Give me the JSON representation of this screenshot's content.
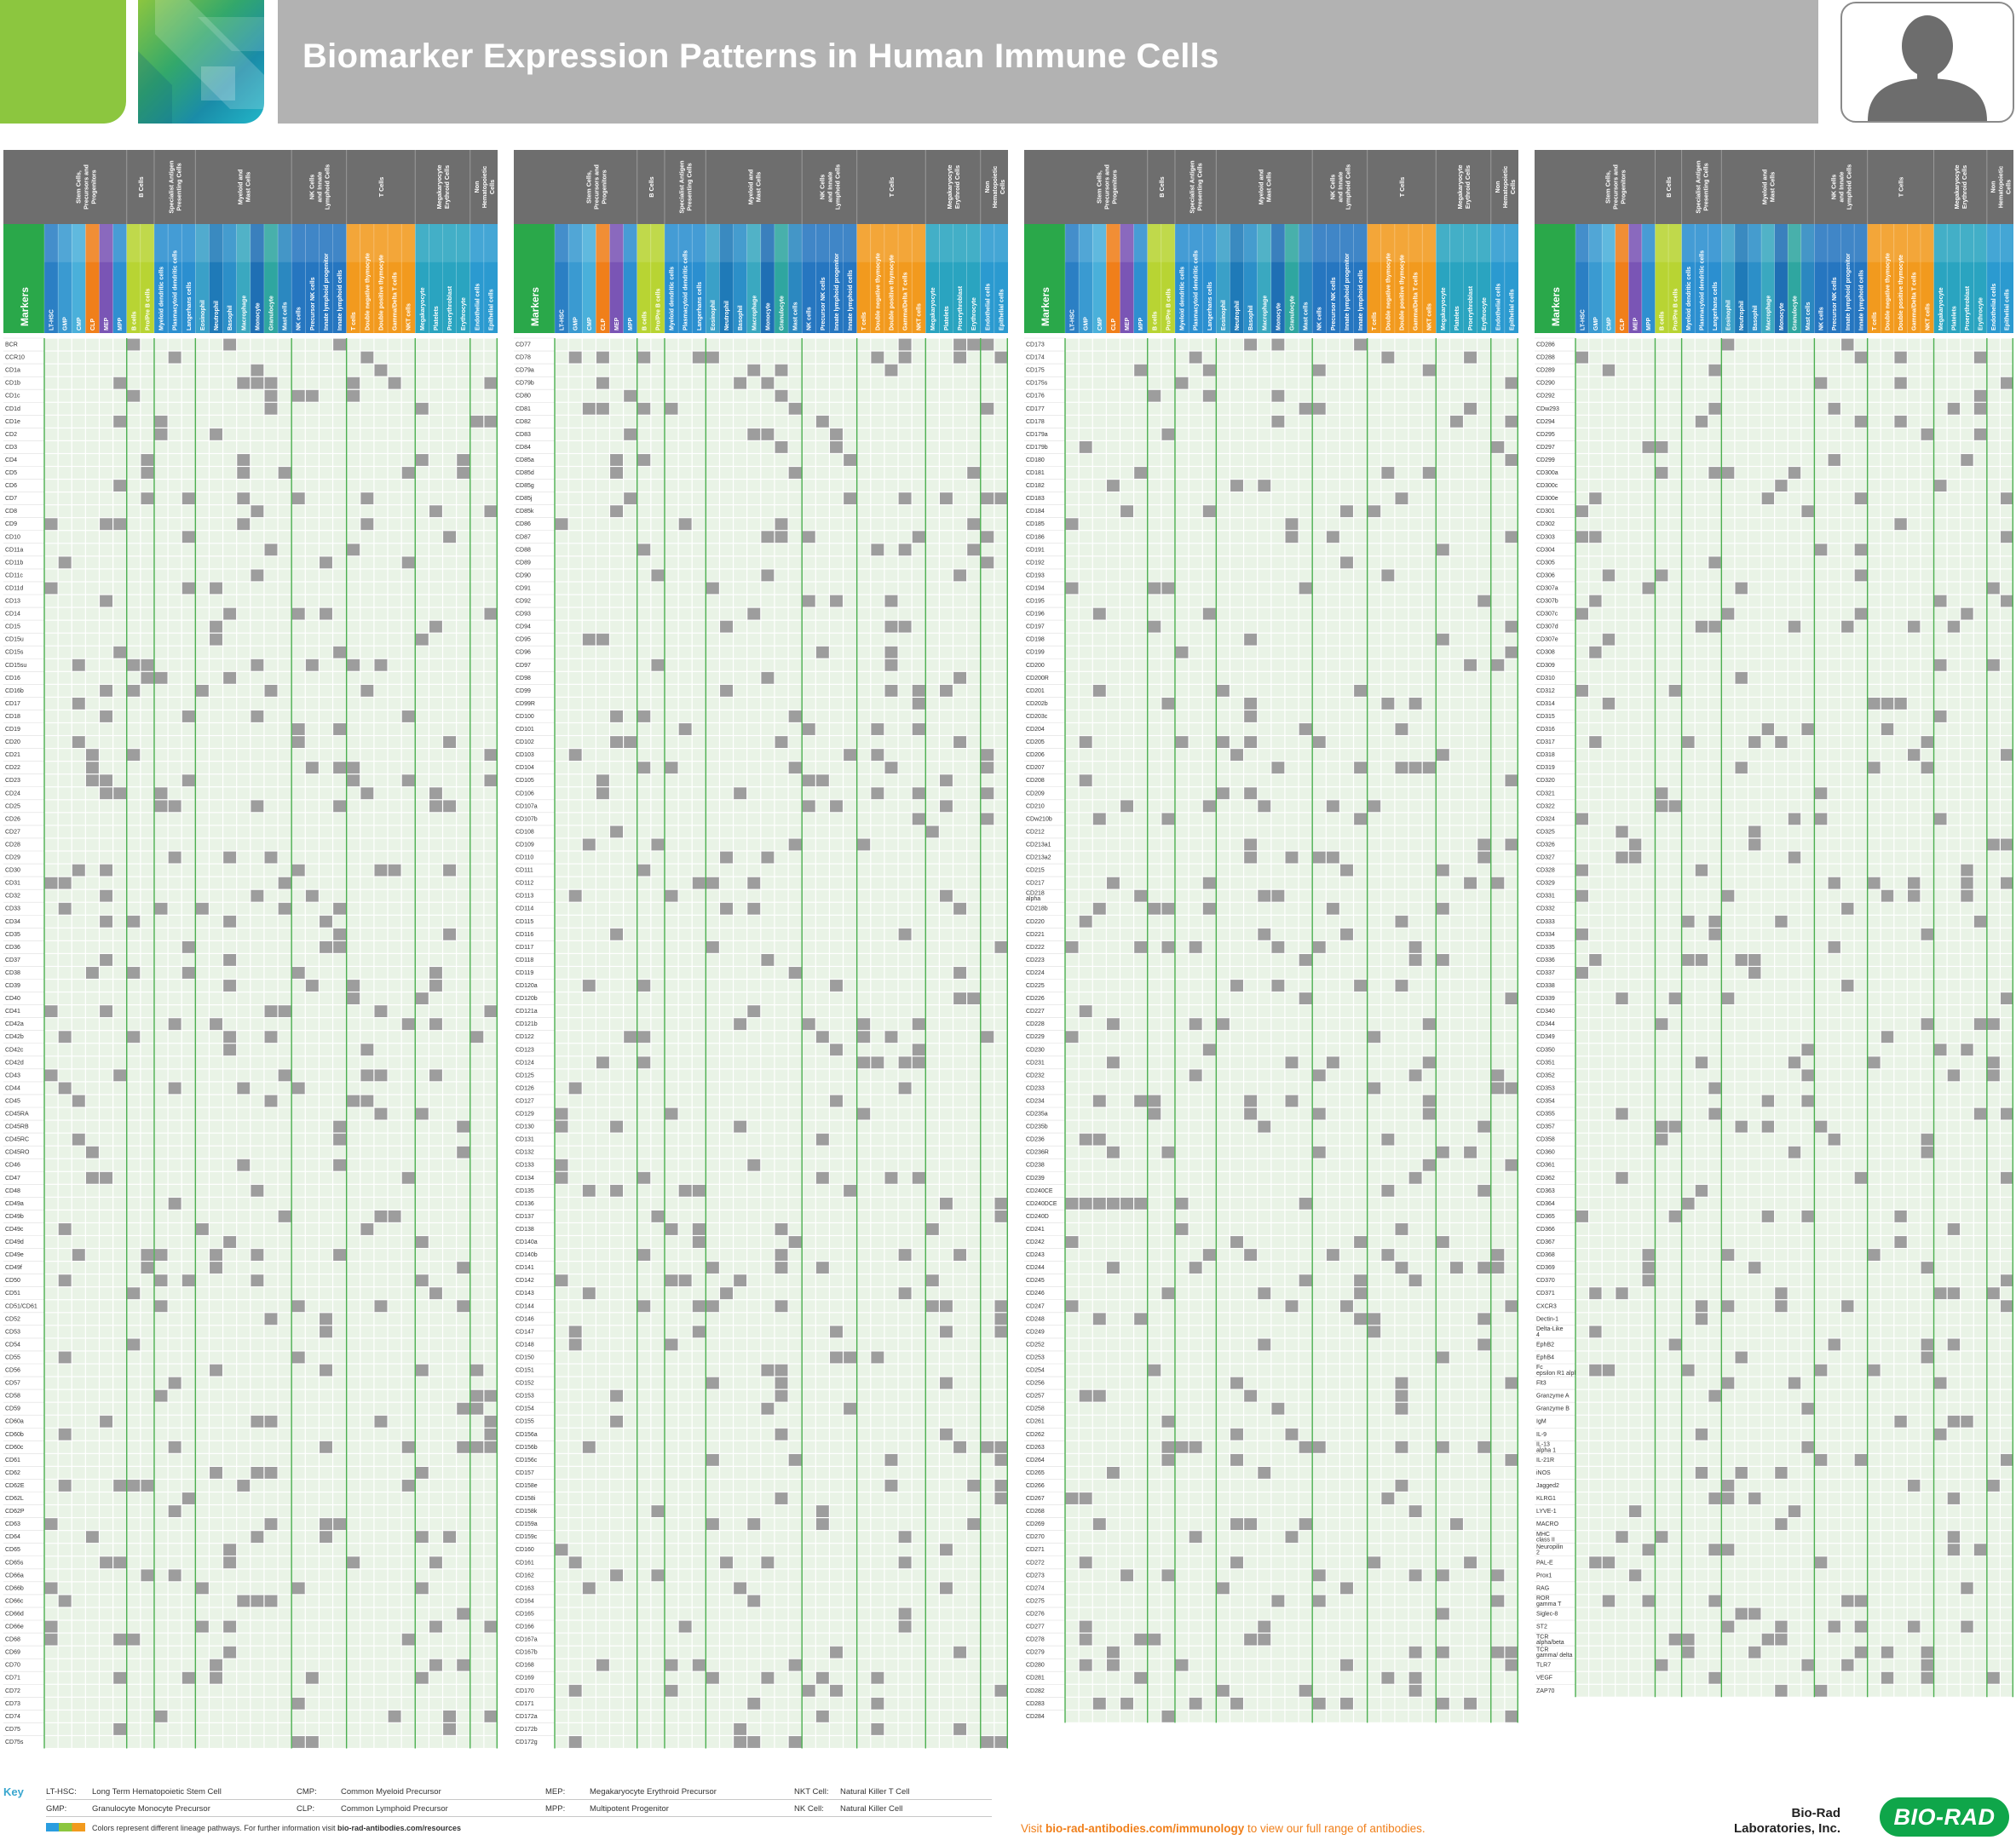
{
  "header": {
    "title": "Biomarker Expression Patterns in Human Immune Cells"
  },
  "colors": {
    "header_gray": "#6e6e6e",
    "grid_green": "#4caf50",
    "cell_light": "#e9f3e6",
    "cell_positive": "#9d9d9d",
    "brand_green": "#0fa64a",
    "accent_orange": "#f07f1a"
  },
  "table": {
    "markers_label": "Markers",
    "groups": [
      {
        "label": "Stem Cells,\nPrecursors and\nProgenitors",
        "span": 6
      },
      {
        "label": "B Cells",
        "span": 2
      },
      {
        "label": "Specialist Antigen\nPresenting Cells",
        "span": 3
      },
      {
        "label": "Myeloid and\nMast Cells",
        "span": 7
      },
      {
        "label": "NK Cells\nand Innate\nLymphoid Cells",
        "span": 4
      },
      {
        "label": "T Cells",
        "span": 5
      },
      {
        "label": "Megakaryocyte\nErythroid Cells",
        "span": 4
      },
      {
        "label": "Non\nHematopoietic\nCells",
        "span": 2
      }
    ],
    "columns": [
      "LT-HSC",
      "GMP",
      "CMP",
      "CLP",
      "MEP",
      "MPP",
      "B cells",
      "Pro/Pre B cells",
      "Myeloid dendritic cells",
      "Plasmacytoid dendritic cells",
      "Langerhans cells",
      "Eosinophil",
      "Neutrophil",
      "Basophil",
      "Macrophage",
      "Monocyte",
      "Granulocyte",
      "Mast cells",
      "NK cells",
      "Precursor NK cells",
      "Innate lymphoid progenitor",
      "Innate lymphoid cells",
      "T cells",
      "Double negative thymocyte",
      "Double positive thymocyte",
      "Gamma/Delta T cells",
      "NKT cells",
      "Megakaryocyte",
      "Platelets",
      "Proerythroblast",
      "Erythrocyte",
      "Endothelial cells",
      "Epithelial cells"
    ]
  },
  "panels": [
    {
      "markers": [
        "BCR",
        "CCR10",
        "CD1a",
        "CD1b",
        "CD1c",
        "CD1d",
        "CD1e",
        "CD2",
        "CD3",
        "CD4",
        "CD5",
        "CD6",
        "CD7",
        "CD8",
        "CD9",
        "CD10",
        "CD11a",
        "CD11b",
        "CD11c",
        "CD11d",
        "CD13",
        "CD14",
        "CD15",
        "CD15u",
        "CD15s",
        "CD15su",
        "CD16",
        "CD16b",
        "CD17",
        "CD18",
        "CD19",
        "CD20",
        "CD21",
        "CD22",
        "CD23",
        "CD24",
        "CD25",
        "CD26",
        "CD27",
        "CD28",
        "CD29",
        "CD30",
        "CD31",
        "CD32",
        "CD33",
        "CD34",
        "CD35",
        "CD36",
        "CD37",
        "CD38",
        "CD39",
        "CD40",
        "CD41",
        "CD42a",
        "CD42b",
        "CD42c",
        "CD42d",
        "CD43",
        "CD44",
        "CD45",
        "CD45RA",
        "CD45RB",
        "CD45RC",
        "CD45RO",
        "CD46",
        "CD47",
        "CD48",
        "CD49a",
        "CD49b",
        "CD49c",
        "CD49d",
        "CD49e",
        "CD49f",
        "CD50",
        "CD51",
        "CD51/CD61",
        "CD52",
        "CD53",
        "CD54",
        "CD55",
        "CD56",
        "CD57",
        "CD58",
        "CD59",
        "CD60a",
        "CD60b",
        "CD60c",
        "CD61",
        "CD62",
        "CD62E",
        "CD62L",
        "CD62P",
        "CD63",
        "CD64",
        "CD65",
        "CD65s",
        "CD66a",
        "CD66b",
        "CD66c",
        "CD66d",
        "CD66e",
        "CD68",
        "CD69",
        "CD70",
        "CD71",
        "CD72",
        "CD73",
        "CD74",
        "CD75",
        "CD75s"
      ]
    },
    {
      "markers": [
        "CD77",
        "CD78",
        "CD79a",
        "CD79b",
        "CD80",
        "CD81",
        "CD82",
        "CD83",
        "CD84",
        "CD85a",
        "CD85d",
        "CD85g",
        "CD85j",
        "CD85k",
        "CD86",
        "CD87",
        "CD88",
        "CD89",
        "CD90",
        "CD91",
        "CD92",
        "CD93",
        "CD94",
        "CD95",
        "CD96",
        "CD97",
        "CD98",
        "CD99",
        "CD99R",
        "CD100",
        "CD101",
        "CD102",
        "CD103",
        "CD104",
        "CD105",
        "CD106",
        "CD107a",
        "CD107b",
        "CD108",
        "CD109",
        "CD110",
        "CD111",
        "CD112",
        "CD113",
        "CD114",
        "CD115",
        "CD116",
        "CD117",
        "CD118",
        "CD119",
        "CD120a",
        "CD120b",
        "CD121a",
        "CD121b",
        "CD122",
        "CD123",
        "CD124",
        "CD125",
        "CD126",
        "CD127",
        "CD129",
        "CD130",
        "CD131",
        "CD132",
        "CD133",
        "CD134",
        "CD135",
        "CD136",
        "CD137",
        "CD138",
        "CD140a",
        "CD140b",
        "CD141",
        "CD142",
        "CD143",
        "CD144",
        "CD146",
        "CD147",
        "CD148",
        "CD150",
        "CD151",
        "CD152",
        "CD153",
        "CD154",
        "CD155",
        "CD156a",
        "CD156b",
        "CD156c",
        "CD157",
        "CD158e",
        "CD158i",
        "CD158k",
        "CD159a",
        "CD159c",
        "CD160",
        "CD161",
        "CD162",
        "CD163",
        "CD164",
        "CD165",
        "CD166",
        "CD167a",
        "CD167b",
        "CD168",
        "CD169",
        "CD170",
        "CD171",
        "CD172a",
        "CD172b",
        "CD172g"
      ]
    },
    {
      "markers": [
        "CD173",
        "CD174",
        "CD175",
        "CD175s",
        "CD176",
        "CD177",
        "CD178",
        "CD179a",
        "CD179b",
        "CD180",
        "CD181",
        "CD182",
        "CD183",
        "CD184",
        "CD185",
        "CD186",
        "CD191",
        "CD192",
        "CD193",
        "CD194",
        "CD195",
        "CD196",
        "CD197",
        "CD198",
        "CD199",
        "CD200",
        "CD200R",
        "CD201",
        "CD202b",
        "CD203c",
        "CD204",
        "CD205",
        "CD206",
        "CD207",
        "CD208",
        "CD209",
        "CD210",
        "CDw210b",
        "CD212",
        "CD213a1",
        "CD213a2",
        "CD215",
        "CD217",
        "CD218 alpha",
        "CD218b",
        "CD220",
        "CD221",
        "CD222",
        "CD223",
        "CD224",
        "CD225",
        "CD226",
        "CD227",
        "CD228",
        "CD229",
        "CD230",
        "CD231",
        "CD232",
        "CD233",
        "CD234",
        "CD235a",
        "CD235b",
        "CD236",
        "CD236R",
        "CD238",
        "CD239",
        "CD240CE",
        "CD240DCE",
        "CD240D",
        "CD241",
        "CD242",
        "CD243",
        "CD244",
        "CD245",
        "CD246",
        "CD247",
        "CD248",
        "CD249",
        "CD252",
        "CD253",
        "CD254",
        "CD256",
        "CD257",
        "CD258",
        "CD261",
        "CD262",
        "CD263",
        "CD264",
        "CD265",
        "CD266",
        "CD267",
        "CD268",
        "CD269",
        "CD270",
        "CD271",
        "CD272",
        "CD273",
        "CD274",
        "CD275",
        "CD276",
        "CD277",
        "CD278",
        "CD279",
        "CD280",
        "CD281",
        "CD282",
        "CD283",
        "CD284"
      ]
    },
    {
      "markers": [
        "CD286",
        "CD288",
        "CD289",
        "CD290",
        "CD292",
        "CDw293",
        "CD294",
        "CD295",
        "CD297",
        "CD299",
        "CD300a",
        "CD300c",
        "CD300e",
        "CD301",
        "CD302",
        "CD303",
        "CD304",
        "CD305",
        "CD306",
        "CD307a",
        "CD307b",
        "CD307c",
        "CD307d",
        "CD307e",
        "CD308",
        "CD309",
        "CD310",
        "CD312",
        "CD314",
        "CD315",
        "CD316",
        "CD317",
        "CD318",
        "CD319",
        "CD320",
        "CD321",
        "CD322",
        "CD324",
        "CD325",
        "CD326",
        "CD327",
        "CD328",
        "CD329",
        "CD331",
        "CD332",
        "CD333",
        "CD334",
        "CD335",
        "CD336",
        "CD337",
        "CD338",
        "CD339",
        "CD340",
        "CD344",
        "CD349",
        "CD350",
        "CD351",
        "CD352",
        "CD353",
        "CD354",
        "CD355",
        "CD357",
        "CD358",
        "CD360",
        "CD361",
        "CD362",
        "CD363",
        "CD364",
        "CD365",
        "CD366",
        "CD367",
        "CD368",
        "CD369",
        "CD370",
        "CD371",
        "CXCR3",
        "Dectin-1",
        "Delta-Like 4",
        "EphB2",
        "EphB4",
        "Fc epsilon R1 alpha",
        "Flt3",
        "Granzyme A",
        "Granzyme B",
        "IgM",
        "IL-9",
        "IL-13 alpha 1",
        "IL-21R",
        "iNOS",
        "Jagged2",
        "KLRG1",
        "LYVE-1",
        "MACRO",
        "MHC class II",
        "Neuropilin 2",
        "PAL-E",
        "Prox1",
        "RAG",
        "ROR gamma T",
        "Siglec-8",
        "ST2",
        "TCR alpha/beta",
        "TCR gamma/ delta",
        "TLR7",
        "VEGF",
        "ZAP70"
      ]
    }
  ],
  "key": {
    "title": "Key",
    "entries": [
      {
        "abbr": "LT-HSC:",
        "desc": "Long Term Hematopoietic Stem Cell"
      },
      {
        "abbr": "CMP:",
        "desc": "Common Myeloid Precursor"
      },
      {
        "abbr": "MEP:",
        "desc": "Megakaryocyte Erythroid Precursor"
      },
      {
        "abbr": "NKT Cell:",
        "desc": "Natural Killer T Cell"
      },
      {
        "abbr": "GMP:",
        "desc": "Granulocyte Monocyte Precursor"
      },
      {
        "abbr": "CLP:",
        "desc": "Common Lymphoid Precursor"
      },
      {
        "abbr": "MPP:",
        "desc": "Multipotent Progenitor"
      },
      {
        "abbr": "NK Cell:",
        "desc": "Natural Killer Cell"
      }
    ],
    "note_prefix": "Colors represent different lineage pathways. For further information visit ",
    "note_link": "bio-rad-antibodies.com/resources"
  },
  "footer": {
    "visit_prefix": "Visit ",
    "visit_link": "bio-rad-antibodies.com/immunology",
    "visit_suffix": " to view our full range of antibodies.",
    "company_line1": "Bio-Rad",
    "company_line2": "Laboratories, Inc.",
    "logo_text": "BIO-RAD"
  }
}
